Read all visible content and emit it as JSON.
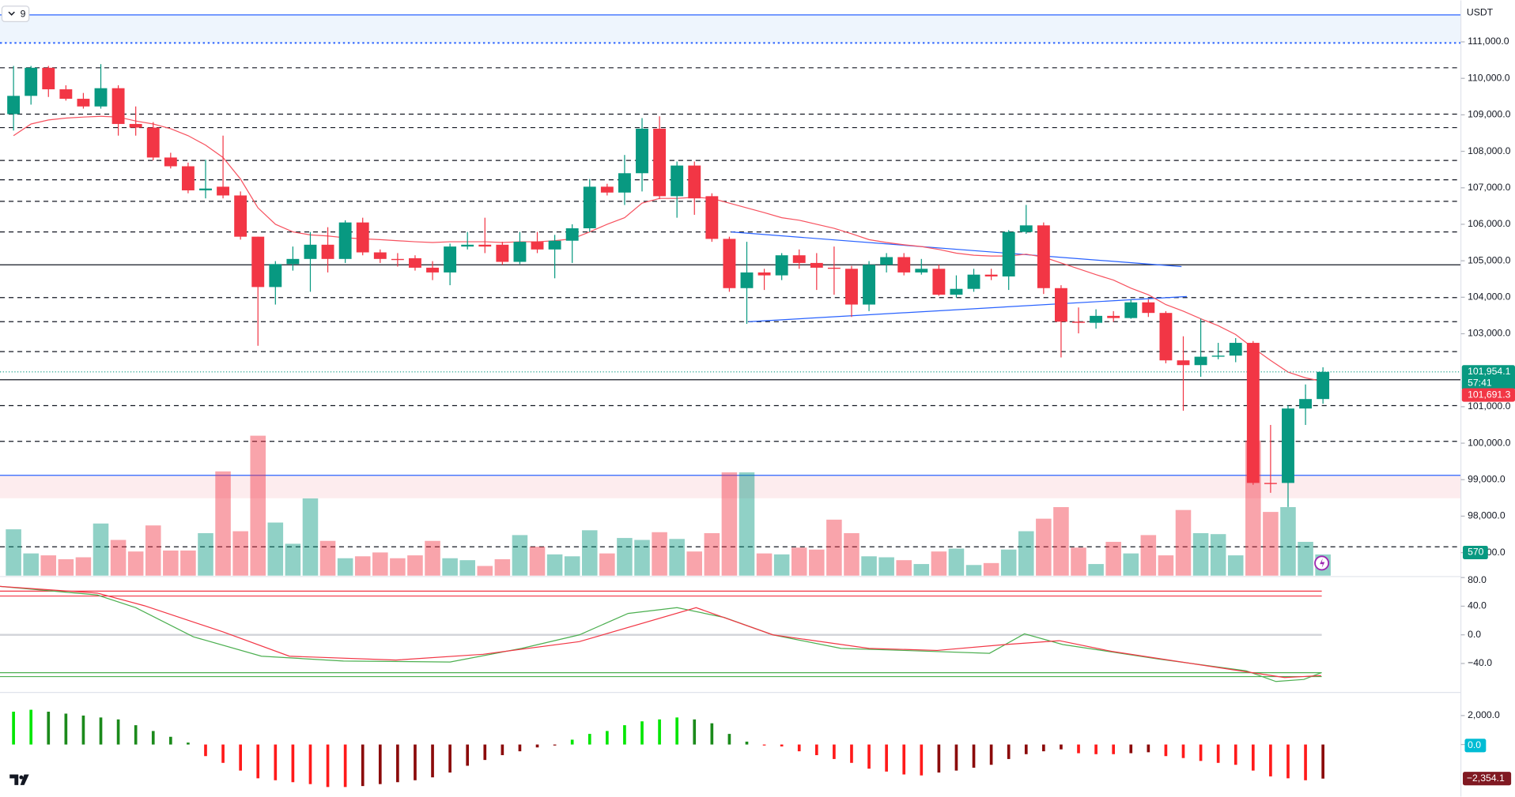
{
  "chart_data": {
    "type": "candlestick",
    "indicator_count": "9",
    "currency": "USDT",
    "ylim": [
      96370,
      112138
    ],
    "yticks": [
      {
        "value": 111000,
        "label": "111,000.0"
      },
      {
        "value": 110000,
        "label": "110,000.0"
      },
      {
        "value": 109000,
        "label": "109,000.0"
      },
      {
        "value": 108000,
        "label": "108,000.0"
      },
      {
        "value": 107000,
        "label": "107,000.0"
      },
      {
        "value": 106000,
        "label": "106,000.0"
      },
      {
        "value": 105000,
        "label": "105,000.0"
      },
      {
        "value": 104000,
        "label": "104,000.0"
      },
      {
        "value": 103000,
        "label": "103,000.0"
      },
      {
        "value": 101000,
        "label": "101,000.0"
      },
      {
        "value": 100000,
        "label": "100,000.0"
      },
      {
        "value": 99000,
        "label": "99,000.0"
      },
      {
        "value": 98000,
        "label": "98,000.0"
      },
      {
        "value": 97000,
        "label": "97,000.0"
      }
    ],
    "up_color": "#089981",
    "down_color": "#f23645",
    "open": [
      109020,
      109520,
      110290,
      109700,
      109440,
      109230,
      109730,
      108750,
      108650,
      107830,
      107590,
      106930,
      107030,
      106790,
      105660,
      104280,
      104910,
      105050,
      105440,
      105050,
      106050,
      105230,
      105050,
      105070,
      104810,
      104680,
      105390,
      105440,
      105440,
      104970,
      105520,
      105310,
      105550,
      105890,
      107030,
      106870,
      107400,
      108620,
      106770,
      107610,
      106770,
      105600,
      104250,
      104680,
      104600,
      105150,
      104940,
      104810,
      104780,
      103800,
      104890,
      105100,
      104680,
      104780,
      104070,
      104230,
      104620,
      104570,
      105790,
      105970,
      104250,
      103330,
      103300,
      103490,
      103430,
      103860,
      103570,
      102270,
      102140,
      102370,
      102400,
      102750,
      98910,
      98910,
      100950,
      101210
    ],
    "high": [
      110340,
      110340,
      110340,
      109810,
      109600,
      110390,
      109810,
      109230,
      108800,
      107960,
      107690,
      107770,
      108430,
      106900,
      105660,
      104990,
      105390,
      105790,
      105920,
      106110,
      106180,
      105310,
      105210,
      105150,
      104990,
      105470,
      105790,
      106180,
      105520,
      105790,
      105790,
      105710,
      106000,
      107240,
      107110,
      107900,
      108910,
      108960,
      107720,
      107720,
      106850,
      105660,
      105520,
      104780,
      105210,
      105310,
      105210,
      105390,
      104860,
      104990,
      105210,
      105210,
      105050,
      104890,
      104600,
      104780,
      104780,
      105840,
      106530,
      106050,
      104330,
      103720,
      103670,
      103620,
      103940,
      103940,
      103620,
      102930,
      103410,
      102750,
      102880,
      102800,
      100500,
      101030,
      101610,
      102080
    ],
    "low": [
      108570,
      109280,
      109490,
      109390,
      109170,
      109170,
      108430,
      108430,
      107750,
      107530,
      106850,
      106710,
      106710,
      105580,
      102670,
      103800,
      104730,
      104150,
      104680,
      104940,
      105150,
      104940,
      104840,
      104730,
      104470,
      104330,
      105310,
      105210,
      104890,
      104910,
      105210,
      104520,
      104940,
      105790,
      106790,
      106530,
      106900,
      106690,
      106180,
      106260,
      105520,
      104150,
      103270,
      104200,
      104470,
      104780,
      104200,
      104070,
      103460,
      103620,
      104680,
      104600,
      104620,
      104040,
      103990,
      104150,
      104470,
      104200,
      105740,
      104090,
      102350,
      103010,
      103140,
      103330,
      103410,
      103460,
      102190,
      100890,
      101820,
      102300,
      102220,
      98860,
      98640,
      98250,
      100500,
      101080
    ],
    "close": [
      109520,
      110290,
      109700,
      109440,
      109230,
      109730,
      108750,
      108650,
      107830,
      107590,
      106930,
      106980,
      106790,
      105660,
      104280,
      104910,
      105050,
      105440,
      105050,
      106050,
      105230,
      105050,
      105020,
      104810,
      104680,
      105390,
      105440,
      105390,
      104970,
      105520,
      105310,
      105550,
      105890,
      107030,
      106870,
      107400,
      108620,
      106770,
      107610,
      106710,
      105600,
      104250,
      104680,
      104600,
      105150,
      104940,
      104810,
      104780,
      103800,
      104890,
      105100,
      104680,
      104780,
      104070,
      104230,
      104620,
      104570,
      105790,
      105970,
      104250,
      103330,
      103300,
      103490,
      103430,
      103860,
      103570,
      102270,
      102140,
      102370,
      102400,
      102750,
      98910,
      98880,
      100950,
      101210,
      101954.1
    ],
    "volume_ylim": [
      0,
      15500
    ],
    "volume": [
      1248,
      598,
      546,
      442,
      494,
      1404,
      962,
      650,
      1352,
      676,
      676,
      1144,
      2808,
      1196,
      3770,
      1430,
      858,
      2080,
      936,
      468,
      520,
      624,
      468,
      546,
      936,
      468,
      416,
      260,
      442,
      1092,
      780,
      572,
      520,
      1222,
      598,
      1014,
      962,
      1170,
      988,
      650,
      1144,
      2782,
      2782,
      598,
      572,
      754,
      702,
      1508,
      1144,
      520,
      494,
      416,
      312,
      650,
      728,
      286,
      338,
      702,
      1196,
      1534,
      1846,
      754,
      312,
      910,
      598,
      1092,
      546,
      1768,
      1144,
      1118,
      546,
      3640,
      1716,
      1846,
      910,
      570
    ],
    "volume_label": {
      "value": 570,
      "label": "570"
    },
    "ema": {
      "color": "#f7525f",
      "values": [
        108430,
        108750,
        108860,
        108910,
        108940,
        108960,
        108940,
        108830,
        108750,
        108620,
        108430,
        108170,
        107830,
        107240,
        106450,
        106000,
        105790,
        105710,
        105680,
        105630,
        105600,
        105580,
        105550,
        105520,
        105500,
        105520,
        105520,
        105520,
        105500,
        105520,
        105520,
        105550,
        105600,
        105790,
        106000,
        106180,
        106580,
        106710,
        106710,
        106740,
        106710,
        106580,
        106450,
        106320,
        106180,
        106110,
        106000,
        105890,
        105740,
        105580,
        105500,
        105440,
        105390,
        105310,
        105210,
        105150,
        105130,
        105130,
        105180,
        105100,
        104940,
        104780,
        104620,
        104470,
        104250,
        104070,
        103800,
        103620,
        103410,
        103220,
        102980,
        102610,
        102270,
        101950,
        101790,
        101691.3
      ]
    },
    "ema_label": {
      "value": 101691.3,
      "label": "101,691.3"
    },
    "last_price": {
      "value": 101954.1,
      "label": "101,954.1"
    },
    "countdown": "57:41",
    "levels": [
      {
        "price": 111740,
        "color": "#2962ff",
        "style": "solid"
      },
      {
        "price": 110970,
        "color": "#2962ff",
        "style": "dotted"
      },
      {
        "price": 110290,
        "color": "#131722",
        "style": "dashed"
      },
      {
        "price": 109020,
        "color": "#131722",
        "style": "dashed"
      },
      {
        "price": 108650,
        "color": "#131722",
        "style": "dashed"
      },
      {
        "price": 107750,
        "color": "#131722",
        "style": "dashed"
      },
      {
        "price": 107220,
        "color": "#131722",
        "style": "dashed"
      },
      {
        "price": 106630,
        "color": "#131722",
        "style": "dashed"
      },
      {
        "price": 105790,
        "color": "#131722",
        "style": "dashed"
      },
      {
        "price": 104890,
        "color": "#131722",
        "style": "solid"
      },
      {
        "price": 103990,
        "color": "#131722",
        "style": "dashed"
      },
      {
        "price": 103330,
        "color": "#131722",
        "style": "dashed"
      },
      {
        "price": 102510,
        "color": "#131722",
        "style": "dashed"
      },
      {
        "price": 101740,
        "color": "#131722",
        "style": "solid"
      },
      {
        "price": 101030,
        "color": "#131722",
        "style": "dashed"
      },
      {
        "price": 100050,
        "color": "#131722",
        "style": "dashed"
      },
      {
        "price": 99120,
        "color": "#2962ff",
        "style": "solid"
      },
      {
        "price": 97160,
        "color": "#131722",
        "style": "dashed"
      }
    ],
    "zones": [
      {
        "from": 111740,
        "to": 110970,
        "color": "#eef5fd"
      },
      {
        "from": 99120,
        "to": 98490,
        "color": "#fdecee"
      }
    ],
    "trendlines": [
      {
        "color": "#2962ff",
        "x": [
          41.1,
          66.9
        ],
        "y": [
          105790,
          104840
        ]
      },
      {
        "color": "#2962ff",
        "x": [
          42.1,
          67.2
        ],
        "y": [
          103330,
          104020
        ]
      }
    ],
    "oscillator": {
      "ylim": [
        -77.7,
        80
      ],
      "yticks": [
        {
          "value": 80,
          "label": "80.0"
        },
        {
          "value": 40,
          "label": "40.0"
        },
        {
          "value": 0,
          "label": "0.0"
        },
        {
          "value": -40,
          "label": "−40.0"
        }
      ],
      "levels": [
        {
          "value": 61.0,
          "color": "#f23645"
        },
        {
          "value": 54.2,
          "color": "#f23645"
        },
        {
          "value": -52.9,
          "color": "#4caf50"
        },
        {
          "value": -58.3,
          "color": "#4caf50"
        }
      ],
      "series": [
        {
          "color": "#4caf50",
          "x": [
            -0.8,
            4.8,
            7.0,
            10.3,
            14.2,
            18.9,
            25.0,
            29.1,
            32.4,
            35.2,
            38.0,
            40.7,
            43.5,
            47.4,
            51.0,
            55.9,
            57.9,
            60.1,
            65.6,
            70.6,
            72.3,
            73.9,
            74.9
          ],
          "values": [
            67.8,
            55.6,
            38.0,
            -2.7,
            -29.8,
            -36.6,
            -38.0,
            -19.0,
            0,
            29.8,
            38.0,
            24.4,
            0,
            -19.0,
            -21.7,
            -25.8,
            1.4,
            -13.6,
            -33.9,
            -50.2,
            -65.1,
            -62.4,
            -52.9
          ]
        },
        {
          "color": "#f23645",
          "x": [
            -0.8,
            4.8,
            7.5,
            12.0,
            15.8,
            21.9,
            26.9,
            32.4,
            39.1,
            43.5,
            49.0,
            52.9,
            56.8,
            59.9,
            62.9,
            68.4,
            72.8,
            74.9
          ],
          "values": [
            67.8,
            58.3,
            40.7,
            4.1,
            -29.8,
            -35.3,
            -27.1,
            -9.5,
            38.0,
            0,
            -19.0,
            -21.7,
            -13.6,
            -8.1,
            -23.1,
            -43.4,
            -59.7,
            -57.0
          ]
        }
      ]
    },
    "macd": {
      "ylim": [
        -3600,
        3533
      ],
      "yticks": [
        {
          "value": 2000,
          "label": "2,000.0"
        },
        {
          "value": 0,
          "label": "0.0"
        }
      ],
      "colors": {
        "up_rise": "#00e600",
        "up_fall": "#1b8a1b",
        "down_fall": "#ff1a1a",
        "down_rise": "#8b0a0a"
      },
      "values": [
        2268,
        2401,
        2268,
        2134,
        2001,
        1868,
        1734,
        1334,
        934,
        534,
        133,
        -800,
        -1267,
        -1801,
        -2334,
        -2468,
        -2601,
        -2734,
        -2935,
        -2935,
        -2868,
        -2734,
        -2601,
        -2468,
        -2268,
        -1934,
        -1467,
        -1067,
        -734,
        -467,
        -200,
        -67,
        334,
        734,
        934,
        1334,
        1601,
        1734,
        1868,
        1734,
        1467,
        734,
        200,
        -67,
        -133,
        -467,
        -734,
        -1001,
        -1267,
        -1668,
        -1868,
        -2068,
        -2134,
        -1934,
        -1801,
        -1601,
        -1401,
        -1001,
        -667,
        -467,
        -334,
        -600,
        -667,
        -667,
        -600,
        -534,
        -800,
        -934,
        -1134,
        -1267,
        -1401,
        -1801,
        -2201,
        -2334,
        -2468,
        -2354.1
      ],
      "signal_label": {
        "value": 0,
        "label": "0.0"
      },
      "last_label": {
        "value": -2354.1,
        "label": "−2,354.1"
      }
    }
  }
}
